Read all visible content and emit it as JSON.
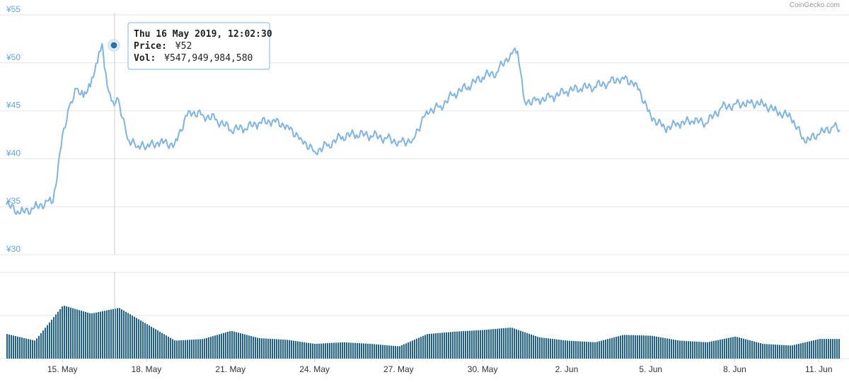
{
  "credit": "CoinGecko.com",
  "tooltip": {
    "date": "Thu 16 May 2019, 12:02:30",
    "price_label": "Price:",
    "price_value": "¥52",
    "vol_label": "Vol:",
    "vol_value": "¥547,949,984,580"
  },
  "colors": {
    "line": "#7cb5ec",
    "accent_tick": "#5aa9e6",
    "volume": "#1a5fa3",
    "grid": "#e6e6e6",
    "marker": "#2271b5"
  },
  "chart_data": [
    {
      "type": "line",
      "title": "",
      "xlabel": "",
      "ylabel": "",
      "x_ticks": [
        "15. May",
        "18. May",
        "21. May",
        "24. May",
        "27. May",
        "30. May",
        "2. Jun",
        "5. Jun",
        "8. Jun",
        "11. Jun"
      ],
      "y_ticks": [
        "¥30",
        "¥35",
        "¥40",
        "¥45",
        "¥50",
        "¥55"
      ],
      "ylim": [
        30,
        55
      ],
      "xlim": [
        "2019-05-13",
        "2019-06-11T18:00"
      ],
      "grid": true,
      "series": [
        {
          "x": [
            "2019-05-13T00:00",
            "2019-05-13T12:00",
            "2019-05-14T00:00",
            "2019-05-14T12:00",
            "2019-05-14T16:00",
            "2019-05-15T00:00",
            "2019-05-15T06:00",
            "2019-05-15T12:00",
            "2019-05-15T18:00",
            "2019-05-16T00:00",
            "2019-05-16T06:00",
            "2019-05-16T10:00",
            "2019-05-16T12:00",
            "2019-05-16T18:00",
            "2019-05-17T00:00",
            "2019-05-17T08:00",
            "2019-05-17T16:00",
            "2019-05-18T00:00",
            "2019-05-18T12:00",
            "2019-05-19T00:00",
            "2019-05-19T12:00",
            "2019-05-20T00:00",
            "2019-05-20T12:00",
            "2019-05-21T00:00",
            "2019-05-21T12:00",
            "2019-05-22T00:00",
            "2019-05-22T12:00",
            "2019-05-23T00:00",
            "2019-05-23T12:00",
            "2019-05-24T00:00",
            "2019-05-24T12:00",
            "2019-05-25T00:00",
            "2019-05-25T12:00",
            "2019-05-26T00:00",
            "2019-05-26T12:00",
            "2019-05-27T00:00",
            "2019-05-27T12:00",
            "2019-05-28T00:00",
            "2019-05-28T12:00",
            "2019-05-29T00:00",
            "2019-05-29T12:00",
            "2019-05-30T00:00",
            "2019-05-30T12:00",
            "2019-05-31T00:00",
            "2019-05-31T06:00",
            "2019-05-31T12:00",
            "2019-06-01T00:00",
            "2019-06-01T12:00",
            "2019-06-02T00:00",
            "2019-06-02T12:00",
            "2019-06-03T00:00",
            "2019-06-03T12:00",
            "2019-06-04T00:00",
            "2019-06-04T12:00",
            "2019-06-05T00:00",
            "2019-06-05T12:00",
            "2019-06-06T00:00",
            "2019-06-06T12:00",
            "2019-06-07T00:00",
            "2019-06-07T12:00",
            "2019-06-08T00:00",
            "2019-06-08T12:00",
            "2019-06-09T00:00",
            "2019-06-09T12:00",
            "2019-06-10T00:00",
            "2019-06-10T12:00",
            "2019-06-11T00:00",
            "2019-06-11T12:00",
            "2019-06-11T18:00"
          ],
          "values": [
            35.2,
            34.3,
            34.9,
            35.6,
            35.5,
            42.5,
            45.5,
            47.3,
            46.4,
            47.5,
            50.0,
            52.0,
            49.5,
            46.0,
            46.2,
            42.0,
            41.2,
            41.2,
            41.8,
            41.5,
            45.0,
            44.6,
            44.1,
            43.0,
            43.1,
            43.7,
            44.0,
            43.5,
            42.2,
            40.8,
            41.5,
            42.3,
            42.5,
            42.4,
            42.2,
            41.8,
            42.0,
            45.0,
            45.5,
            46.8,
            47.5,
            48.5,
            49.0,
            51.0,
            51.2,
            46.0,
            46.2,
            46.5,
            47.0,
            47.3,
            47.5,
            48.0,
            48.5,
            47.8,
            44.5,
            43.2,
            43.6,
            43.9,
            43.7,
            45.3,
            45.7,
            45.9,
            45.8,
            44.9,
            44.3,
            41.7,
            42.5,
            43.3,
            43.0
          ]
        }
      ]
    },
    {
      "type": "bar",
      "title": "",
      "xlabel": "",
      "ylabel": "",
      "series": [
        {
          "name": "",
          "x": [
            "2019-05-13",
            "2019-05-14",
            "2019-05-15",
            "2019-05-16",
            "2019-05-17",
            "2019-05-18",
            "2019-05-19",
            "2019-05-20",
            "2019-05-21",
            "2019-05-22",
            "2019-05-23",
            "2019-05-24",
            "2019-05-25",
            "2019-05-26",
            "2019-05-27",
            "2019-05-28",
            "2019-05-29",
            "2019-05-30",
            "2019-05-31",
            "2019-06-01",
            "2019-06-02",
            "2019-06-03",
            "2019-06-04",
            "2019-06-05",
            "2019-06-06",
            "2019-06-07",
            "2019-06-08",
            "2019-06-09",
            "2019-06-10",
            "2019-06-11"
          ],
          "values": [
            0.3,
            0.22,
            0.65,
            0.55,
            0.62,
            0.42,
            0.22,
            0.24,
            0.34,
            0.25,
            0.23,
            0.18,
            0.2,
            0.18,
            0.15,
            0.3,
            0.33,
            0.35,
            0.38,
            0.26,
            0.22,
            0.2,
            0.29,
            0.28,
            0.22,
            0.2,
            0.27,
            0.18,
            0.16,
            0.24
          ]
        }
      ]
    }
  ]
}
